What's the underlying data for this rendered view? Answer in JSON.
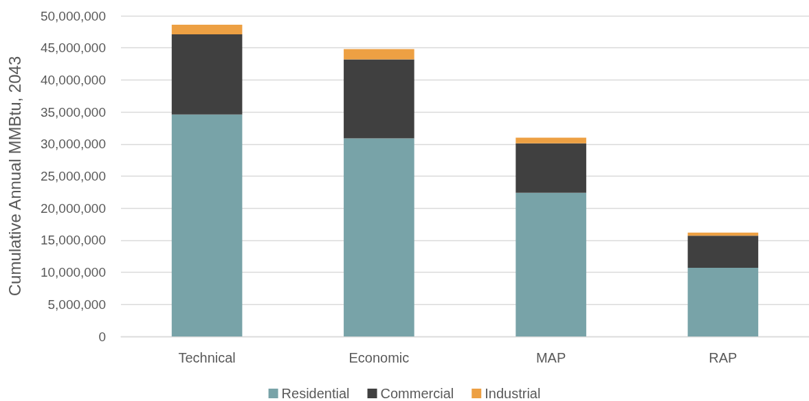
{
  "chart_data": {
    "type": "bar",
    "stacked": true,
    "categories": [
      "Technical",
      "Economic",
      "MAP",
      "RAP"
    ],
    "series": [
      {
        "name": "Residential",
        "color": "#78a3a8",
        "values": [
          34600000,
          30900000,
          22400000,
          10700000
        ]
      },
      {
        "name": "Commercial",
        "color": "#404040",
        "values": [
          12500000,
          12300000,
          7700000,
          5000000
        ]
      },
      {
        "name": "Industrial",
        "color": "#eda043",
        "values": [
          1500000,
          1600000,
          900000,
          500000
        ]
      }
    ],
    "ylabel": "Cumulative Annual MMBtu, 2043",
    "ylim": [
      0,
      50000000
    ],
    "yticks": [
      0,
      {
        "value": 5000000,
        "label": "5,000,000"
      },
      {
        "value": 10000000,
        "label": "10,000,000"
      },
      {
        "value": 15000000,
        "label": "15,000,000"
      },
      {
        "value": 20000000,
        "label": "20,000,000"
      },
      {
        "value": 25000000,
        "label": "25,000,000"
      },
      {
        "value": 30000000,
        "label": "30,000,000"
      },
      {
        "value": 35000000,
        "label": "35,000,000"
      },
      {
        "value": 40000000,
        "label": "40,000,000"
      },
      {
        "value": 45000000,
        "label": "45,000,000"
      },
      {
        "value": 50000000,
        "label": "50,000,000"
      }
    ],
    "grid": "y",
    "legend": "bottom"
  }
}
